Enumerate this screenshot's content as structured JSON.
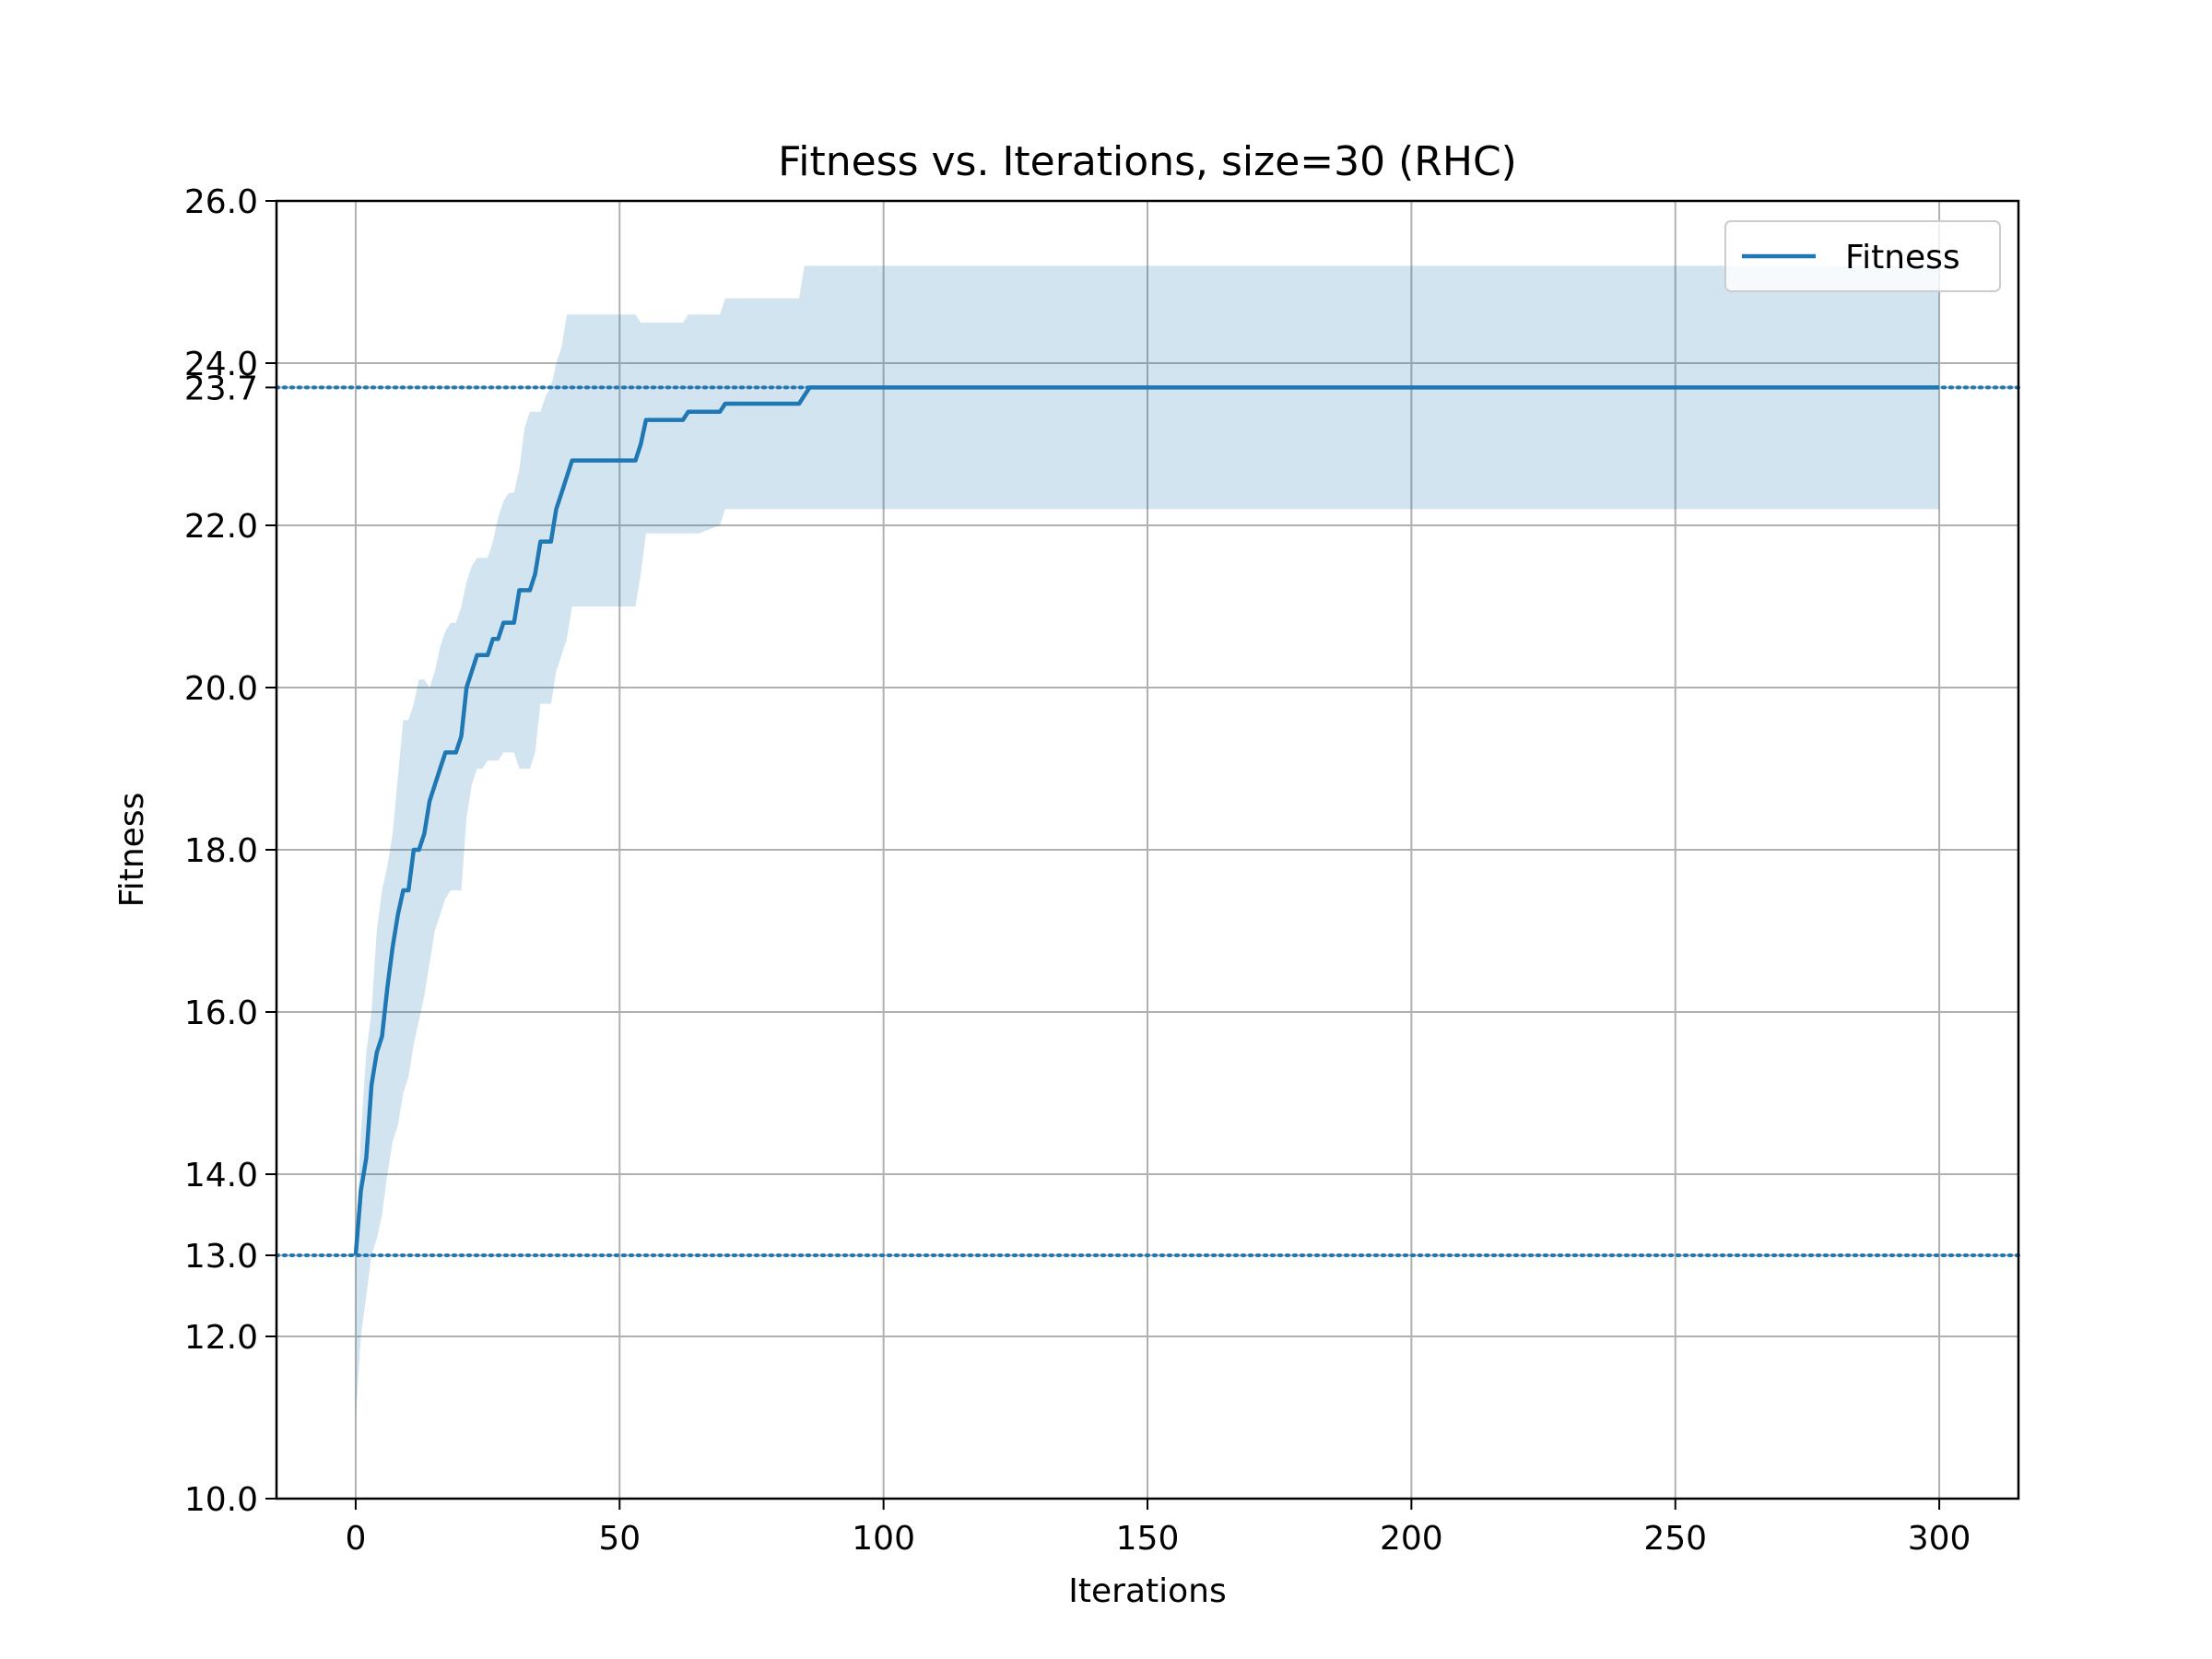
{
  "chart_data": {
    "type": "line",
    "title": "Fitness vs. Iterations, size=30 (RHC)",
    "xlabel": "Iterations",
    "ylabel": "Fitness",
    "xlim": [
      -15,
      315
    ],
    "ylim": [
      10,
      26
    ],
    "xticks": [
      0,
      50,
      100,
      150,
      200,
      250,
      300
    ],
    "yticks": [
      10.0,
      12.0,
      13.0,
      14.0,
      16.0,
      18.0,
      20.0,
      22.0,
      23.7,
      24.0,
      26.0
    ],
    "ytick_labels": [
      "10.0",
      "12.0",
      "13.0",
      "14.0",
      "16.0",
      "18.0",
      "20.0",
      "22.0",
      "23.7",
      "24.0",
      "26.0"
    ],
    "grid": true,
    "legend_position": "upper right",
    "colors": {
      "line": "#1f77b4",
      "band": "#1f77b4"
    },
    "series": [
      {
        "name": "Fitness",
        "x": [
          0,
          1,
          2,
          3,
          4,
          5,
          6,
          7,
          8,
          9,
          10,
          11,
          12,
          13,
          14,
          15,
          16,
          17,
          18,
          19,
          20,
          21,
          22,
          23,
          24,
          25,
          26,
          27,
          28,
          29,
          30,
          31,
          32,
          33,
          34,
          35,
          36,
          37,
          38,
          39,
          40,
          41,
          42,
          45,
          50,
          53,
          54,
          55,
          60,
          62,
          63,
          65,
          69,
          70,
          75,
          80,
          84,
          85,
          86,
          90,
          100,
          150,
          200,
          250,
          300
        ],
        "y": [
          13.0,
          13.8,
          14.2,
          15.1,
          15.5,
          15.7,
          16.3,
          16.8,
          17.2,
          17.5,
          17.5,
          18.0,
          18.0,
          18.2,
          18.6,
          18.8,
          19.0,
          19.2,
          19.2,
          19.2,
          19.4,
          20.0,
          20.2,
          20.4,
          20.4,
          20.4,
          20.6,
          20.6,
          20.8,
          20.8,
          20.8,
          21.2,
          21.2,
          21.2,
          21.4,
          21.8,
          21.8,
          21.8,
          22.2,
          22.4,
          22.6,
          22.8,
          22.8,
          22.8,
          22.8,
          22.8,
          23.0,
          23.3,
          23.3,
          23.3,
          23.4,
          23.4,
          23.4,
          23.5,
          23.5,
          23.5,
          23.5,
          23.6,
          23.7,
          23.7,
          23.7,
          23.7,
          23.7,
          23.7,
          23.7
        ],
        "band_upper": [
          13.0,
          14.5,
          15.5,
          16.0,
          17.0,
          17.5,
          17.8,
          18.2,
          18.9,
          19.6,
          19.6,
          19.8,
          20.1,
          20.1,
          20.0,
          20.2,
          20.5,
          20.7,
          20.8,
          20.8,
          21.0,
          21.3,
          21.5,
          21.6,
          21.6,
          21.6,
          21.8,
          22.1,
          22.3,
          22.4,
          22.4,
          22.7,
          23.2,
          23.4,
          23.4,
          23.4,
          23.6,
          23.7,
          24.0,
          24.2,
          24.6,
          24.6,
          24.6,
          24.6,
          24.6,
          24.6,
          24.5,
          24.5,
          24.5,
          24.5,
          24.6,
          24.6,
          24.6,
          24.8,
          24.8,
          24.8,
          24.8,
          25.2,
          25.2,
          25.2,
          25.2,
          25.2,
          25.2,
          25.2,
          25.2
        ],
        "band_lower": [
          11.0,
          12.0,
          12.5,
          13.0,
          13.2,
          13.5,
          14.0,
          14.4,
          14.6,
          15.0,
          15.2,
          15.6,
          15.9,
          16.2,
          16.6,
          17.0,
          17.2,
          17.4,
          17.5,
          17.5,
          17.5,
          18.4,
          18.8,
          19.0,
          19.0,
          19.1,
          19.1,
          19.1,
          19.2,
          19.2,
          19.2,
          19.0,
          19.0,
          19.0,
          19.2,
          19.8,
          19.8,
          19.8,
          20.2,
          20.4,
          20.6,
          21.0,
          21.0,
          21.0,
          21.0,
          21.0,
          21.4,
          21.9,
          21.9,
          21.9,
          21.9,
          21.9,
          22.0,
          22.2,
          22.2,
          22.2,
          22.2,
          22.2,
          22.2,
          22.2,
          22.2,
          22.2,
          22.2,
          22.2,
          22.2
        ]
      }
    ],
    "reference_lines": [
      {
        "y": 23.7,
        "style": "dotted"
      },
      {
        "y": 13.0,
        "style": "dotted"
      }
    ]
  }
}
